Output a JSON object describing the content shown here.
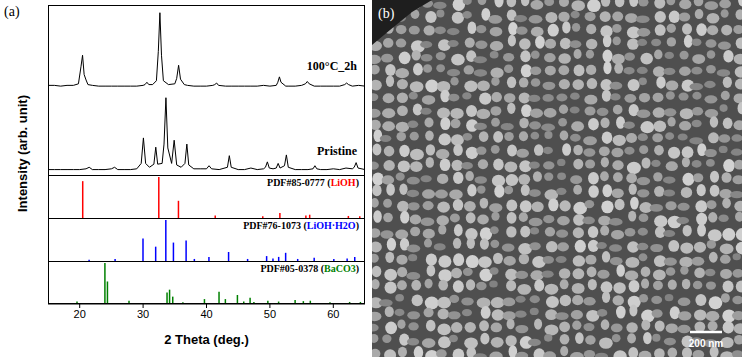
{
  "figure": {
    "panel_labels": [
      "(a)",
      "(b)"
    ],
    "ylabel": "Intensity (arb. unit)",
    "scale_bar": "200 nm"
  },
  "chart_data": [
    {
      "type": "line",
      "name": "100°C_2h",
      "color": "#000000",
      "xlim": [
        15,
        65
      ],
      "xticks": [
        20,
        30,
        40,
        50,
        60
      ],
      "ylim": [
        0,
        1.1
      ],
      "yticks": [],
      "tick_labels": false,
      "x": [
        15,
        16,
        17,
        18,
        19,
        19.8,
        20.2,
        20.45,
        20.7,
        21.0,
        21.3,
        22,
        23,
        24,
        25,
        26,
        27,
        28,
        29,
        30,
        30.3,
        30.6,
        30.9,
        31.5,
        32.1,
        32.4,
        32.65,
        32.9,
        33.2,
        34,
        35,
        35.3,
        35.6,
        35.9,
        36.5,
        37,
        38,
        39,
        40,
        41,
        41.3,
        41.6,
        41.9,
        43,
        44,
        45,
        46,
        47,
        48,
        49,
        50,
        51,
        51.25,
        51.5,
        51.75,
        52.5,
        53,
        54,
        55,
        55.6,
        55.9,
        56.2,
        57,
        58,
        59,
        60,
        61,
        61.8,
        62.1,
        62.4,
        63,
        64,
        65
      ],
      "values": [
        0.06,
        0.06,
        0.05,
        0.06,
        0.06,
        0.08,
        0.3,
        0.45,
        0.2,
        0.13,
        0.07,
        0.06,
        0.05,
        0.05,
        0.05,
        0.05,
        0.05,
        0.05,
        0.05,
        0.06,
        0.07,
        0.1,
        0.07,
        0.07,
        0.12,
        0.5,
        1.0,
        0.45,
        0.12,
        0.07,
        0.08,
        0.15,
        0.32,
        0.14,
        0.07,
        0.06,
        0.05,
        0.05,
        0.05,
        0.06,
        0.07,
        0.09,
        0.06,
        0.05,
        0.05,
        0.05,
        0.05,
        0.05,
        0.05,
        0.06,
        0.05,
        0.06,
        0.1,
        0.17,
        0.1,
        0.05,
        0.05,
        0.05,
        0.06,
        0.08,
        0.11,
        0.08,
        0.05,
        0.05,
        0.05,
        0.05,
        0.05,
        0.07,
        0.09,
        0.07,
        0.05,
        0.06,
        0.05
      ]
    },
    {
      "type": "line",
      "name": "Pristine",
      "color": "#000000",
      "xlim": [
        15,
        65
      ],
      "xticks": [
        20,
        30,
        40,
        50,
        60
      ],
      "ylim": [
        0,
        1.1
      ],
      "yticks": [],
      "tick_labels": false,
      "x": [
        15,
        16,
        17,
        18,
        19,
        20,
        21,
        21.5,
        22,
        23,
        24,
        25,
        25.5,
        26,
        27,
        28,
        29,
        29.7,
        30.05,
        30.4,
        31,
        31.7,
        32.0,
        32.3,
        33.0,
        33.3,
        33.6,
        33.9,
        34.5,
        34.9,
        35.3,
        36,
        36.6,
        36.9,
        37.2,
        38,
        39,
        40,
        40.4,
        40.8,
        42,
        43.3,
        43.6,
        43.9,
        45,
        46,
        47,
        48,
        49,
        49.3,
        49.6,
        49.9,
        50.5,
        51.0,
        51.3,
        51.6,
        52.3,
        52.6,
        52.9,
        54,
        55,
        56,
        56.8,
        57.1,
        57.4,
        58,
        59,
        60,
        61,
        62,
        63,
        63.3,
        63.6,
        63.9,
        65
      ],
      "values": [
        0.07,
        0.07,
        0.07,
        0.07,
        0.07,
        0.07,
        0.08,
        0.1,
        0.07,
        0.07,
        0.07,
        0.08,
        0.1,
        0.07,
        0.07,
        0.07,
        0.08,
        0.15,
        0.48,
        0.15,
        0.1,
        0.14,
        0.36,
        0.14,
        0.15,
        0.4,
        1.0,
        0.35,
        0.15,
        0.45,
        0.13,
        0.1,
        0.15,
        0.4,
        0.13,
        0.08,
        0.08,
        0.08,
        0.12,
        0.08,
        0.07,
        0.1,
        0.25,
        0.1,
        0.07,
        0.07,
        0.09,
        0.07,
        0.08,
        0.1,
        0.17,
        0.09,
        0.08,
        0.09,
        0.15,
        0.09,
        0.12,
        0.26,
        0.1,
        0.07,
        0.07,
        0.07,
        0.08,
        0.12,
        0.08,
        0.07,
        0.07,
        0.08,
        0.07,
        0.09,
        0.08,
        0.1,
        0.16,
        0.09,
        0.07
      ]
    },
    {
      "type": "bar",
      "title_parts": [
        "PDF#85-0777 (",
        "LiOH",
        ")"
      ],
      "color": "#ff0000",
      "xlim": [
        15,
        65
      ],
      "xticks": [
        20,
        30,
        40,
        50,
        60
      ],
      "ylim": [
        0,
        1.05
      ],
      "yticks": [],
      "tick_labels": false,
      "x": [
        20.5,
        32.5,
        35.6,
        41.4,
        48.9,
        51.6,
        55.7,
        56.3,
        62.4,
        64.2
      ],
      "values": [
        0.9,
        1.0,
        0.42,
        0.06,
        0.04,
        0.12,
        0.06,
        0.08,
        0.05,
        0.04
      ]
    },
    {
      "type": "bar",
      "title_parts": [
        "PDF#76-1073 (",
        "LiOH·H2O",
        ")"
      ],
      "color": "#0000ff",
      "xlim": [
        15,
        65
      ],
      "xticks": [
        20,
        30,
        40,
        50,
        60
      ],
      "ylim": [
        0,
        1.05
      ],
      "yticks": [],
      "tick_labels": false,
      "x": [
        21.5,
        25.6,
        30.0,
        32.0,
        33.6,
        34.8,
        36.8,
        38.1,
        40.4,
        43.5,
        46.5,
        49.5,
        50.5,
        51.4,
        52.5,
        54.4,
        57.0,
        60.1,
        62.2,
        63.4
      ],
      "values": [
        0.03,
        0.05,
        0.55,
        0.35,
        1.0,
        0.45,
        0.5,
        0.05,
        0.1,
        0.22,
        0.05,
        0.12,
        0.06,
        0.1,
        0.2,
        0.05,
        0.08,
        0.05,
        0.06,
        0.1
      ]
    },
    {
      "type": "bar",
      "title_parts": [
        "PDF#05-0378 (",
        "BaCO3",
        ")"
      ],
      "color": "#008000",
      "xlim": [
        15,
        65
      ],
      "xticks": [
        20,
        30,
        40,
        50,
        60
      ],
      "ylim": [
        0,
        1.05
      ],
      "yticks": [],
      "tick_labels": "x",
      "xlabel": "2 Theta (deg.)",
      "x": [
        19.5,
        23.9,
        24.3,
        27.7,
        33.7,
        34.1,
        34.6,
        36.2,
        39.6,
        41.9,
        42.9,
        44.8,
        45.8,
        46.8,
        47.4,
        49.6,
        51.3,
        53.9,
        55.2,
        56.3,
        59.4,
        62.5,
        64.2
      ],
      "values": [
        0.06,
        1.0,
        0.55,
        0.08,
        0.28,
        0.35,
        0.18,
        0.04,
        0.12,
        0.3,
        0.12,
        0.22,
        0.06,
        0.15,
        0.05,
        0.08,
        0.06,
        0.1,
        0.07,
        0.08,
        0.04,
        0.05,
        0.05
      ]
    }
  ]
}
